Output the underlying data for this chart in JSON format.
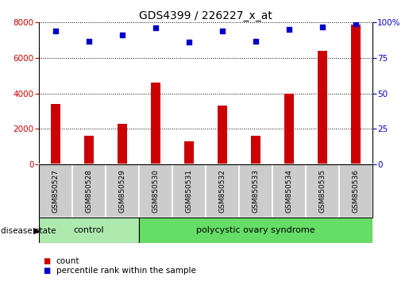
{
  "title": "GDS4399 / 226227_x_at",
  "samples": [
    "GSM850527",
    "GSM850528",
    "GSM850529",
    "GSM850530",
    "GSM850531",
    "GSM850532",
    "GSM850533",
    "GSM850534",
    "GSM850535",
    "GSM850536"
  ],
  "counts": [
    3400,
    1600,
    2300,
    4600,
    1300,
    3300,
    1600,
    4000,
    6400,
    7900
  ],
  "percentiles": [
    94,
    87,
    91,
    96,
    86,
    94,
    87,
    95,
    97,
    99
  ],
  "ylim_left": [
    0,
    8000
  ],
  "ylim_right": [
    0,
    100
  ],
  "yticks_left": [
    0,
    2000,
    4000,
    6000,
    8000
  ],
  "yticks_right": [
    0,
    25,
    50,
    75,
    100
  ],
  "bar_color": "#cc0000",
  "dot_color": "#0000cc",
  "control_indices": [
    0,
    1,
    2
  ],
  "pcos_indices": [
    3,
    4,
    5,
    6,
    7,
    8,
    9
  ],
  "control_label": "control",
  "pcos_label": "polycystic ovary syndrome",
  "disease_state_label": "disease state",
  "legend_count_label": "count",
  "legend_percentile_label": "percentile rank within the sample",
  "control_color": "#aeeaae",
  "pcos_color": "#66dd66",
  "tick_label_bg": "#cccccc",
  "grid_color": "black",
  "title_fontsize": 10,
  "tick_fontsize": 7.5
}
